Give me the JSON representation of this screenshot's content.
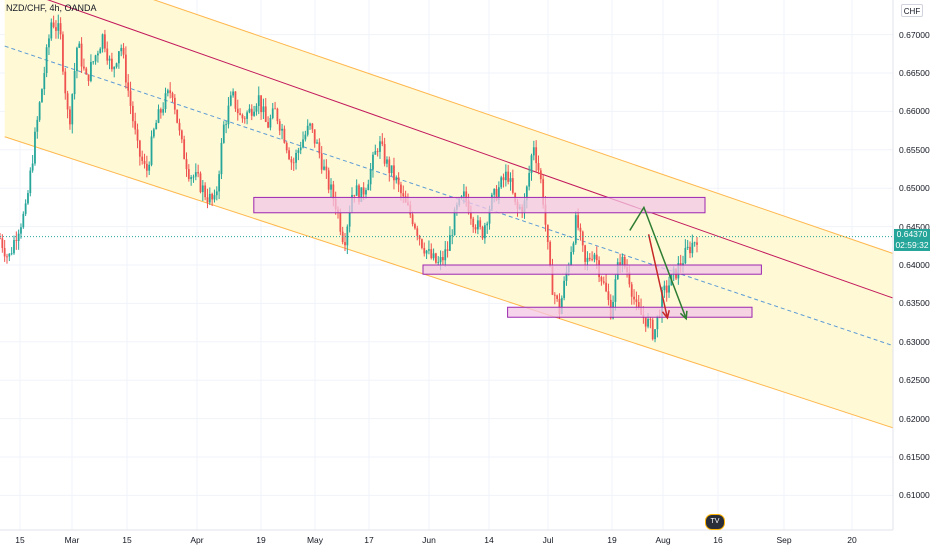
{
  "header": {
    "symbol": "NZD/CHF, 4h, OANDA",
    "currency": "CHF"
  },
  "price_tag": {
    "price": "0.64370",
    "countdown": "02:59:32"
  },
  "chart_data": {
    "type": "candlestick",
    "yaxis": {
      "range": [
        0.6055,
        0.6745
      ],
      "ticks": [
        "0.67000",
        "0.66500",
        "0.66000",
        "0.65500",
        "0.65000",
        "0.64500",
        "0.64000",
        "0.63500",
        "0.63000",
        "0.62500",
        "0.62000",
        "0.61500",
        "0.61000"
      ]
    },
    "xaxis": {
      "ticks": [
        "15",
        "Mar",
        "15",
        "Apr",
        "19",
        "May",
        "17",
        "Jun",
        "14",
        "Jul",
        "19",
        "Aug",
        "16",
        "Sep",
        "20"
      ]
    },
    "last_price": 0.6437,
    "price_path": [
      0.6435,
      0.6408,
      0.6445,
      0.647,
      0.656,
      0.664,
      0.672,
      0.67,
      0.658,
      0.669,
      0.664,
      0.667,
      0.67,
      0.665,
      0.669,
      0.662,
      0.655,
      0.652,
      0.658,
      0.661,
      0.663,
      0.656,
      0.652,
      0.651,
      0.649,
      0.648,
      0.658,
      0.662,
      0.659,
      0.66,
      0.662,
      0.658,
      0.66,
      0.657,
      0.653,
      0.656,
      0.658,
      0.655,
      0.651,
      0.648,
      0.643,
      0.65,
      0.649,
      0.652,
      0.656,
      0.653,
      0.651,
      0.648,
      0.646,
      0.643,
      0.641,
      0.64,
      0.642,
      0.647,
      0.649,
      0.646,
      0.644,
      0.648,
      0.65,
      0.652,
      0.647,
      0.648,
      0.656,
      0.65,
      0.638,
      0.634,
      0.64,
      0.646,
      0.64,
      0.642,
      0.638,
      0.634,
      0.641,
      0.639,
      0.634,
      0.633,
      0.631,
      0.636,
      0.638,
      0.64,
      0.642,
      0.6437
    ],
    "channel": {
      "upper": [
        [
          0.5,
          0.6812
        ],
        [
          95,
          0.6415
        ]
      ],
      "middle": [
        [
          0.5,
          0.6685
        ],
        [
          95,
          0.6295
        ]
      ],
      "lower": [
        [
          0.5,
          0.6567
        ],
        [
          95,
          0.6188
        ]
      ],
      "red_line": [
        [
          4,
          0.675
        ],
        [
          95,
          0.6357
        ]
      ]
    },
    "zones": [
      {
        "x": [
          27,
          75
        ],
        "y": [
          0.6468,
          0.6488
        ]
      },
      {
        "x": [
          45,
          81
        ],
        "y": [
          0.6388,
          0.64
        ]
      },
      {
        "x": [
          54,
          80
        ],
        "y": [
          0.6332,
          0.6345
        ]
      }
    ],
    "arrows": [
      {
        "color": "green",
        "points": [
          [
            67,
            0.6445
          ],
          [
            68.5,
            0.6475
          ],
          [
            73,
            0.633
          ]
        ]
      },
      {
        "color": "red",
        "points": [
          [
            69,
            0.644
          ],
          [
            71,
            0.6331
          ]
        ]
      }
    ]
  },
  "colors": {
    "channel_fill": "#fff9d6",
    "channel_line": "#ffb74d",
    "middle_line": "#5b9bd5",
    "red_line": "#c2185b",
    "zone_fill": "#f3c6e6",
    "zone_stroke": "#9c27b0",
    "up": "#26a69a",
    "down": "#ef5350",
    "arrow_green": "#2e7d32",
    "arrow_red": "#c62828"
  }
}
